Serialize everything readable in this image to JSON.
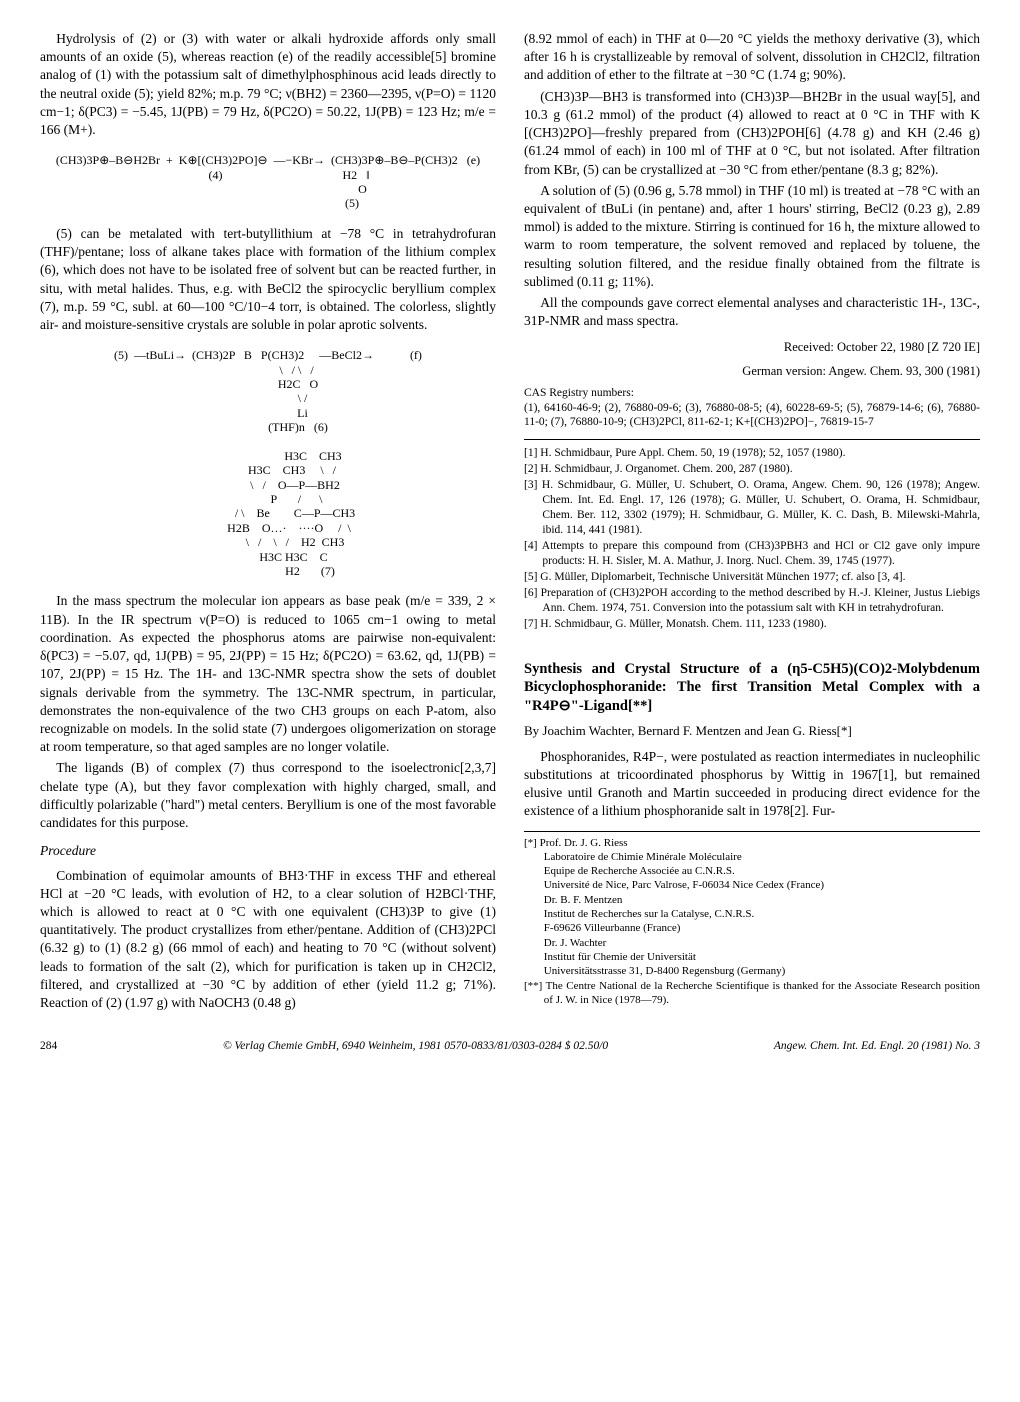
{
  "left": {
    "p1": "Hydrolysis of (2) or (3) with water or alkali hydroxide affords only small amounts of an oxide (5), whereas reaction (e) of the readily accessible[5] bromine analog of (1) with the potassium salt of dimethylphosphinous acid leads directly to the neutral oxide (5); yield 82%; m.p. 79 °C; ν(BH2) = 2360—2395, ν(P=O) = 1120 cm−1; δ(PC3) = −5.45, 1J(PB) = 79 Hz, δ(PC2O) = 50.22, 1J(PB) = 123 Hz; m/e = 166 (M+).",
    "scheme1": "(CH3)3P⊕–B⊖H2Br  +  K⊕[(CH3)2PO]⊖  —−KBr→  (CH3)3P⊕–B⊖–P(CH3)2   (e)\n              (4)                                        H2   ‖\n                                                               O\n                                                        (5)",
    "p2": "(5) can be metalated with tert-butyllithium at −78 °C in tetrahydrofuran (THF)/pentane; loss of alkane takes place with formation of the lithium complex (6), which does not have to be isolated free of solvent but can be reacted further, in situ, with metal halides. Thus, e.g. with BeCl2 the spirocyclic beryllium complex (7), m.p. 59 °C, subl. at 60—100 °C/10−4 torr, is obtained. The colorless, slightly air- and moisture-sensitive crystals are soluble in polar aprotic solvents.",
    "scheme2": "(5)  —tBuLi→  (CH3)2P   B   P(CH3)2     —BeCl2→            (f)\n                   \\   / \\   /\n                    H2C   O\n                       \\ /\n                       Li\n                    (THF)n   (6)\n\n                              H3C    CH3\n                H3C    CH3     \\   /\n                  \\   /    O—P—BH2\n                   P       /      \\\n                  / \\    Be        C—P—CH3\n              H2B    O…·    ····O     /  \\\n                  \\   /    \\   /    H2  CH3\n                 H3C H3C    C\n                            H2       (7)",
    "p3": "In the mass spectrum the molecular ion appears as base peak (m/e = 339, 2 × 11B). In the IR spectrum ν(P=O) is reduced to 1065 cm−1 owing to metal coordination. As expected the phosphorus atoms are pairwise non-equivalent: δ(PC3) = −5.07, qd, 1J(PB) = 95, 2J(PP) = 15 Hz; δ(PC2O) = 63.62, qd, 1J(PB) = 107, 2J(PP) = 15 Hz. The 1H- and 13C-NMR spectra show the sets of doublet signals derivable from the symmetry. The 13C-NMR spectrum, in particular, demonstrates the non-equivalence of the two CH3 groups on each P-atom, also recognizable on models. In the solid state (7) undergoes oligomerization on storage at room temperature, so that aged samples are no longer volatile.",
    "p4": "The ligands (B) of complex (7) thus correspond to the isoelectronic[2,3,7] chelate type (A), but they favor complexation with highly charged, small, and difficultly polarizable (\"hard\") metal centers. Beryllium is one of the most favorable candidates for this purpose.",
    "proc_head": "Procedure",
    "p5": "Combination of equimolar amounts of BH3·THF in excess THF and ethereal HCl at −20 °C leads, with evolution of H2, to a clear solution of H2BCl·THF, which is allowed to react at 0 °C with one equivalent (CH3)3P to give (1) quantitatively. The product crystallizes from ether/pentane. Addition of (CH3)2PCl (6.32 g) to (1) (8.2 g) (66 mmol of each) and heating to 70 °C (without solvent) leads to formation of the salt (2), which for purification is taken up in CH2Cl2, filtered, and crystallized at −30 °C by addition of ether (yield 11.2 g; 71%). Reaction of (2) (1.97 g) with NaOCH3 (0.48 g)"
  },
  "right": {
    "p1": "(8.92 mmol of each) in THF at 0—20 °C yields the methoxy derivative (3), which after 16 h is crystallizeable by removal of solvent, dissolution in CH2Cl2, filtration and addition of ether to the filtrate at −30 °C (1.74 g; 90%).",
    "p2": "(CH3)3P—BH3 is transformed into (CH3)3P—BH2Br in the usual way[5], and 10.3 g (61.2 mmol) of the product (4) allowed to react at 0 °C in THF with K [(CH3)2PO]—freshly prepared from (CH3)2POH[6] (4.78 g) and KH (2.46 g) (61.24 mmol of each) in 100 ml of THF at 0 °C, but not isolated. After filtration from KBr, (5) can be crystallized at −30 °C from ether/pentane (8.3 g; 82%).",
    "p3": "A solution of (5) (0.96 g, 5.78 mmol) in THF (10 ml) is treated at −78 °C with an equivalent of tBuLi (in pentane) and, after 1 hours' stirring, BeCl2 (0.23 g), 2.89 mmol) is added to the mixture. Stirring is continued for 16 h, the mixture allowed to warm to room temperature, the solvent removed and replaced by toluene, the resulting solution filtered, and the residue finally obtained from the filtrate is sublimed (0.11 g; 11%).",
    "p4": "All the compounds gave correct elemental analyses and characteristic 1H-, 13C-, 31P-NMR and mass spectra.",
    "received1": "Received: October 22, 1980   [Z 720 IE]",
    "received2": "German version: Angew. Chem. 93, 300 (1981)",
    "cas_head": "CAS Registry numbers:",
    "cas_body": "(1), 64160-46-9; (2), 76880-09-6; (3), 76880-08-5; (4), 60228-69-5; (5), 76879-14-6; (6), 76880-11-0; (7), 76880-10-9; (CH3)2PCl, 811-62-1; K+[(CH3)2PO]−, 76819-15-7",
    "refs": [
      "[1] H. Schmidbaur, Pure Appl. Chem. 50, 19 (1978); 52, 1057 (1980).",
      "[2] H. Schmidbaur, J. Organomet. Chem. 200, 287 (1980).",
      "[3] H. Schmidbaur, G. Müller, U. Schubert, O. Orama, Angew. Chem. 90, 126 (1978); Angew. Chem. Int. Ed. Engl. 17, 126 (1978); G. Müller, U. Schubert, O. Orama, H. Schmidbaur, Chem. Ber. 112, 3302 (1979); H. Schmidbaur, G. Müller, K. C. Dash, B. Milewski-Mahrla, ibid. 114, 441 (1981).",
      "[4] Attempts to prepare this compound from (CH3)3PBH3 and HCl or Cl2 gave only impure products: H. H. Sisler, M. A. Mathur, J. Inorg. Nucl. Chem. 39, 1745 (1977).",
      "[5] G. Müller, Diplomarbeit, Technische Universität München 1977; cf. also [3, 4].",
      "[6] Preparation of (CH3)2POH according to the method described by H.-J. Kleiner, Justus Liebigs Ann. Chem. 1974, 751. Conversion into the potassium salt with KH in tetrahydrofuran.",
      "[7] H. Schmidbaur, G. Müller, Monatsh. Chem. 111, 1233 (1980)."
    ],
    "title": "Synthesis and Crystal Structure of a (η5-C5H5)(CO)2-Molybdenum Bicyclophosphoranide: The first Transition Metal Complex with a \"R4P⊖\"-Ligand[**]",
    "authors": "By Joachim Wachter, Bernard F. Mentzen and Jean G. Riess[*]",
    "p5": "Phosphoranides, R4P−, were postulated as reaction intermediates in nucleophilic substitutions at tricoordinated phosphorus by Wittig in 1967[1], but remained elusive until Granoth and Martin succeeded in producing direct evidence for the existence of a lithium phosphoranide salt in 1978[2]. Fur-",
    "fn": [
      "[*] Prof. Dr. J. G. Riess",
      "Laboratoire de Chimie Minérale Moléculaire",
      "Equipe de Recherche Associée au C.N.R.S.",
      "Université de Nice, Parc Valrose, F-06034 Nice Cedex (France)",
      "Dr. B. F. Mentzen",
      "Institut de Recherches sur la Catalyse, C.N.R.S.",
      "F-69626 Villeurbanne (France)",
      "Dr. J. Wachter",
      "Institut für Chemie der Universität",
      "Universitätsstrasse 31, D-8400 Regensburg (Germany)",
      "[**] The Centre National de la Recherche Scientifique is thanked for the Associate Research position of J. W. in Nice (1978—79)."
    ]
  },
  "footer": {
    "page": "284",
    "copyright": "© Verlag Chemie GmbH, 6940 Weinheim, 1981     0570-0833/81/0303-0284     $ 02.50/0",
    "cite": "Angew. Chem. Int. Ed. Engl. 20 (1981) No. 3"
  }
}
